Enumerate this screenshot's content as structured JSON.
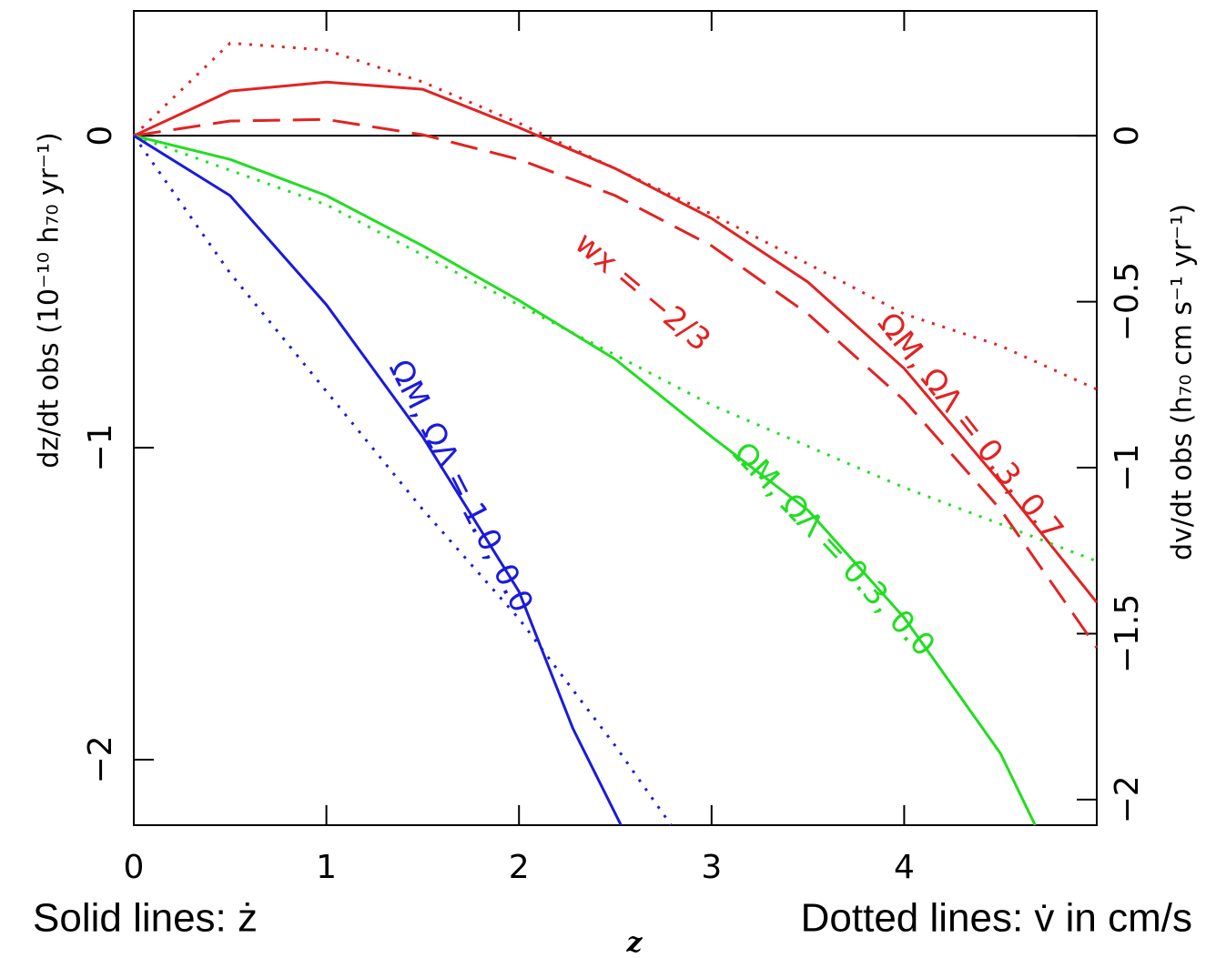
{
  "chart_data": {
    "type": "line",
    "x_label": "z",
    "y_label": "dz/dt obs (10⁻¹⁰ h₇₀ yr⁻¹)",
    "y2_label": "dv/dt obs (h₇₀ cm s⁻¹ yr⁻¹)",
    "footer_left": "Solid lines: ż",
    "footer_right": "Dotted lines: v̇ in cm/s",
    "xlim": [
      0,
      5
    ],
    "xticks": [
      0,
      1,
      2,
      3,
      4
    ],
    "ylim": [
      -2.21,
      0.4
    ],
    "yticks": [
      0,
      {
        "value": -1,
        "label": "−1"
      },
      {
        "value": -2,
        "label": "−2"
      }
    ],
    "y2lim": [
      -2.077,
      0.376
    ],
    "y2ticks": [
      0,
      {
        "value": -0.5,
        "label": "−0.5"
      },
      {
        "value": -1,
        "label": "−1"
      },
      {
        "value": -1.5,
        "label": "−1.5"
      },
      {
        "value": -2,
        "label": "−2"
      }
    ],
    "grid": false,
    "series": [
      {
        "color": "#e32222",
        "dash": "solid",
        "x": [
          0,
          0.5,
          1,
          1.5,
          2,
          2.5,
          3,
          3.5,
          4,
          4.5,
          5
        ],
        "values": [
          0,
          0.143,
          0.172,
          0.149,
          0.026,
          -0.105,
          -0.265,
          -0.469,
          -0.746,
          -1.111,
          -1.496
        ]
      },
      {
        "color": "#e32222",
        "dash": "dashed",
        "x": [
          0,
          0.5,
          1,
          1.5,
          2,
          2.5,
          3,
          3.5,
          4,
          4.5,
          5
        ],
        "values": [
          0,
          0.047,
          0.052,
          0.003,
          -0.076,
          -0.192,
          -0.353,
          -0.571,
          -0.848,
          -1.198,
          -1.641
        ]
      },
      {
        "color": "#e32222",
        "dash": "dotted",
        "axis": "y2",
        "x": [
          0,
          0.5,
          1,
          1.5,
          2,
          2.5,
          3,
          3.5,
          4,
          4.5,
          5
        ],
        "values": [
          0,
          0.279,
          0.258,
          0.162,
          0.038,
          -0.099,
          -0.236,
          -0.386,
          -0.537,
          -0.633,
          -0.764
        ]
      },
      {
        "color": "#22dd22",
        "dash": "solid",
        "x": [
          0,
          0.5,
          1,
          1.5,
          2,
          2.5,
          3,
          3.5,
          4,
          4.5,
          4.68
        ],
        "values": [
          0,
          -0.076,
          -0.192,
          -0.353,
          -0.528,
          -0.717,
          -0.965,
          -1.2,
          -1.545,
          -1.98,
          -2.21
        ]
      },
      {
        "color": "#22dd22",
        "dash": "dotted",
        "axis": "y2",
        "x": [
          0,
          1,
          2,
          3,
          4,
          4.5,
          5
        ],
        "values": [
          0,
          -0.208,
          -0.51,
          -0.811,
          -1.06,
          -1.17,
          -1.282
        ]
      },
      {
        "color": "#1a1adf",
        "dash": "solid",
        "x": [
          0,
          0.5,
          1,
          1.5,
          2,
          2.28,
          2.53
        ],
        "values": [
          0,
          -0.192,
          -0.542,
          -0.965,
          -1.461,
          -1.9,
          -2.21
        ]
      },
      {
        "color": "#1a1adf",
        "dash": "dotted",
        "axis": "y2",
        "x": [
          0,
          0.5,
          1,
          1.5,
          2,
          2.5,
          2.79
        ],
        "values": [
          0,
          -0.414,
          -0.77,
          -1.126,
          -1.455,
          -1.838,
          -2.077
        ]
      }
    ],
    "annotations": [
      "ΩM, ΩΛ = 1.0, 0.0",
      "ΩM, ΩΛ = 0.3, 0.0",
      "ΩM, ΩΛ = 0.3, 0.7",
      "wx = −2/3"
    ]
  }
}
